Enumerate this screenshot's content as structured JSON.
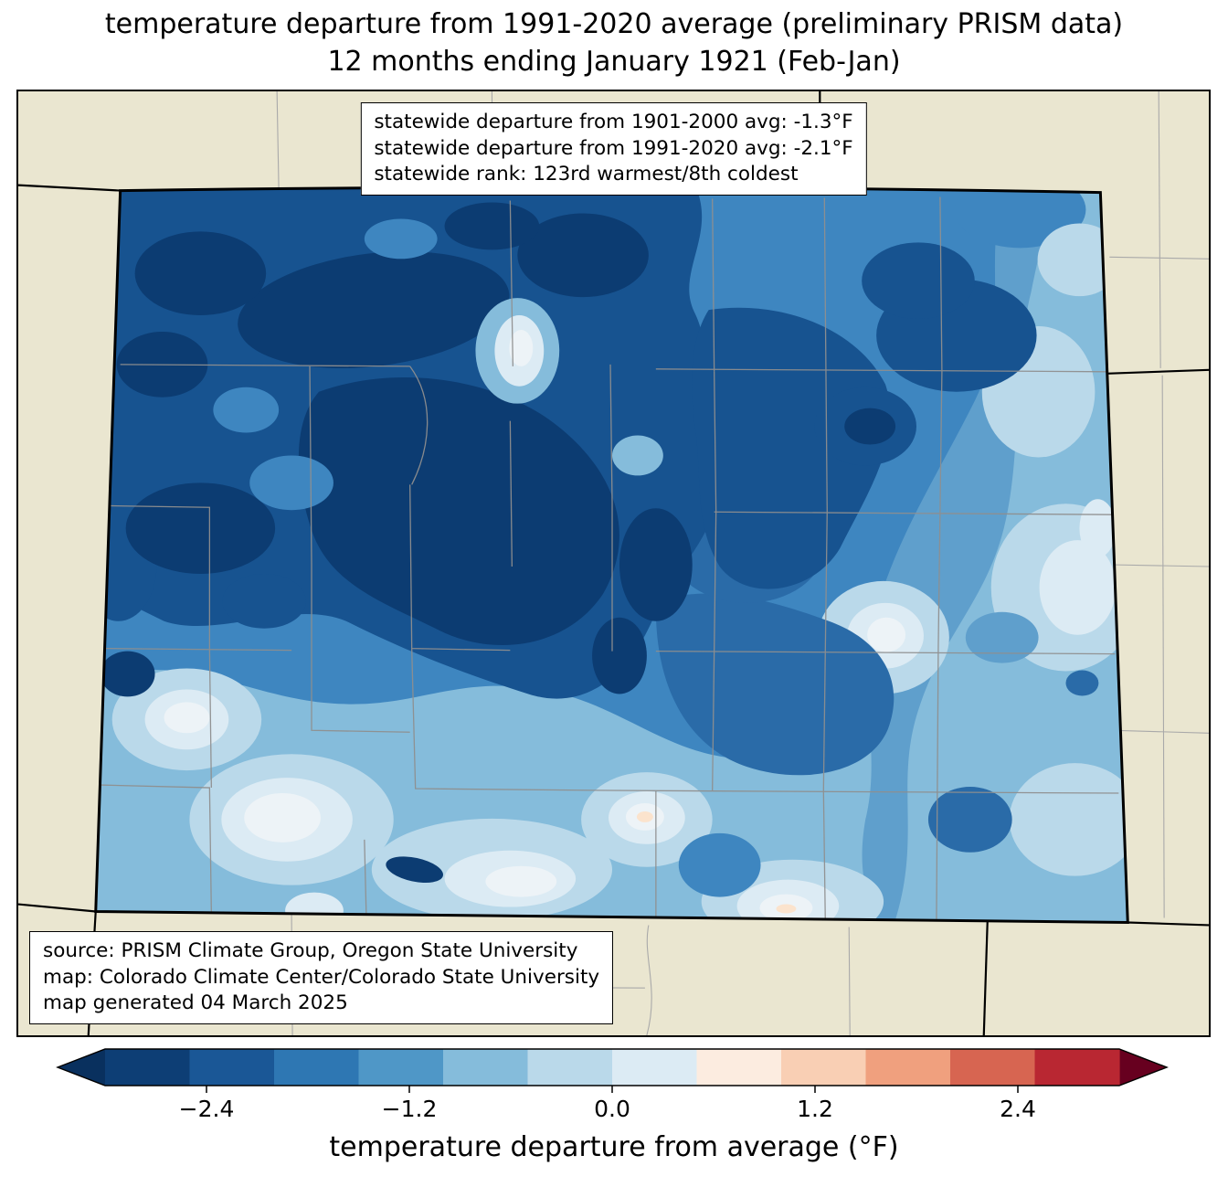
{
  "title": {
    "line1": "temperature departure from 1991-2020 average (preliminary PRISM data)",
    "line2": "12 months ending January 1921 (Feb-Jan)"
  },
  "stats_box": {
    "lines": [
      "statewide departure from 1901-2000 avg: -1.3°F",
      "statewide departure from 1991-2020 avg: -2.1°F",
      "statewide rank: 123rd warmest/8th coldest"
    ]
  },
  "source_box": {
    "lines": [
      "source: PRISM Climate Group, Oregon State University",
      "map: Colorado Climate Center/Colorado State University",
      "map generated 04 March 2025"
    ]
  },
  "colorbar": {
    "label": "temperature departure from average (°F)",
    "ticks": [
      "−2.4",
      "−1.2",
      "0.0",
      "1.2",
      "2.4"
    ],
    "tick_positions_pct": [
      10,
      30,
      50,
      70,
      90
    ],
    "range": [
      -3.0,
      3.0
    ],
    "segment_colors": [
      "#0d3e75",
      "#1a5796",
      "#2e77b3",
      "#4f97c7",
      "#85bcdb",
      "#bad9ea",
      "#dcebf4",
      "#fcece0",
      "#f9cfb4",
      "#f0a07e",
      "#d76551",
      "#b92732"
    ],
    "under_color": "#09305e",
    "over_color": "#67001f"
  },
  "map_colors": {
    "background_land": "#eae6d0",
    "state_border": "#000000",
    "county_line": "#8f8f8f",
    "darkest_blue": "#0c3c72",
    "dark_blue": "#175390",
    "mid_blue": "#3e86c0",
    "light_blue": "#85bcdb",
    "pale_blue": "#dcebf4",
    "near_white": "#edf3f7",
    "pale_peach": "#fbe3cd"
  },
  "chart_data": {
    "type": "heatmap",
    "title": "temperature departure from 1991-2020 average (preliminary PRISM data) — 12 months ending January 1921 (Feb-Jan)",
    "region": "Colorado",
    "variable": "temperature departure from average (°F)",
    "statewide": {
      "departure_from_1901_2000_avg_F": -1.3,
      "departure_from_1991_2020_avg_F": -2.1,
      "rank": "123rd warmest/8th coldest"
    },
    "colorbar": {
      "ticks": [
        -2.4,
        -1.2,
        0.0,
        1.2,
        2.4
      ],
      "range": [
        -3.0,
        3.0
      ],
      "colormap": "blue-white-red diverging, blue = colder than average",
      "extend": "both"
    },
    "spatial_pattern": {
      "coldest_region": "northwest and central mountains (below -2.5°F)",
      "mildest_regions": "southwest valleys, south-central and far eastern plains (0 to -1°F)",
      "overall": "entire state colder than average"
    }
  }
}
